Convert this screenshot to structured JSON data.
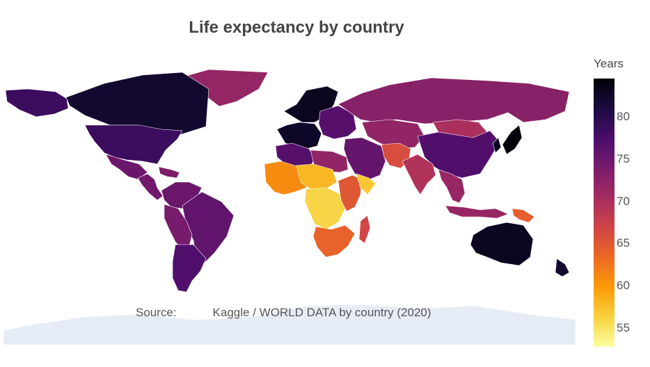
{
  "title": "Life expectancy by country",
  "source": "Source:           Kaggle / WORLD DATA by country (2020)",
  "colorbar": {
    "title": "Years",
    "min": 52.8,
    "max": 84.5,
    "ticks": [
      {
        "value": 80,
        "label": "80"
      },
      {
        "value": 75,
        "label": "75"
      },
      {
        "value": 70,
        "label": "70"
      },
      {
        "value": 65,
        "label": "65"
      },
      {
        "value": 60,
        "label": "60"
      },
      {
        "value": 55,
        "label": "55"
      }
    ],
    "colorscale": [
      "#fcffa4",
      "#f7d13d",
      "#fb9b06",
      "#ed6925",
      "#cf4446",
      "#a52c60",
      "#781c6d",
      "#4a0c6b",
      "#1b0c41",
      "#000004"
    ]
  },
  "chart_data": {
    "type": "choropleth",
    "title": "Life expectancy by country",
    "value_label": "Years",
    "range": [
      52.8,
      84.5
    ],
    "regions": [
      {
        "name": "Greenland",
        "value": 71.7
      },
      {
        "name": "Canada",
        "value": 82.0
      },
      {
        "name": "Alaska",
        "value": 78.5
      },
      {
        "name": "United States",
        "value": 78.5
      },
      {
        "name": "Mexico",
        "value": 75.0
      },
      {
        "name": "Central America",
        "value": 74.5
      },
      {
        "name": "Caribbean",
        "value": 73.5
      },
      {
        "name": "Colombia / Venezuela",
        "value": 75.0
      },
      {
        "name": "Brazil",
        "value": 75.7
      },
      {
        "name": "Peru / Bolivia",
        "value": 74.0
      },
      {
        "name": "Argentina / Chile",
        "value": 77.0
      },
      {
        "name": "Iceland / Scandinavia",
        "value": 82.8
      },
      {
        "name": "Western Europe",
        "value": 82.5
      },
      {
        "name": "Eastern Europe",
        "value": 76.5
      },
      {
        "name": "Russia",
        "value": 72.7
      },
      {
        "name": "Kazakhstan / Central Asia",
        "value": 72.0
      },
      {
        "name": "Mongolia",
        "value": 69.9
      },
      {
        "name": "China",
        "value": 76.9
      },
      {
        "name": "Japan",
        "value": 84.2
      },
      {
        "name": "Korea",
        "value": 82.9
      },
      {
        "name": "Middle East",
        "value": 75.5
      },
      {
        "name": "Afghanistan / Pakistan",
        "value": 66.0
      },
      {
        "name": "India",
        "value": 69.4
      },
      {
        "name": "Southeast Asia",
        "value": 71.5
      },
      {
        "name": "Indonesia",
        "value": 71.5
      },
      {
        "name": "Papua New Guinea",
        "value": 64.3
      },
      {
        "name": "Australia",
        "value": 82.8
      },
      {
        "name": "New Zealand",
        "value": 81.9
      },
      {
        "name": "Morocco / Algeria",
        "value": 76.5
      },
      {
        "name": "Libya / Egypt",
        "value": 72.0
      },
      {
        "name": "West Africa",
        "value": 61.0
      },
      {
        "name": "Sahel",
        "value": 58.0
      },
      {
        "name": "Central Africa",
        "value": 56.0
      },
      {
        "name": "East Africa",
        "value": 65.0
      },
      {
        "name": "Horn of Africa",
        "value": 57.0
      },
      {
        "name": "Southern Africa",
        "value": 64.0
      },
      {
        "name": "Madagascar",
        "value": 66.7
      },
      {
        "name": "Antarctica",
        "value": null
      }
    ]
  }
}
